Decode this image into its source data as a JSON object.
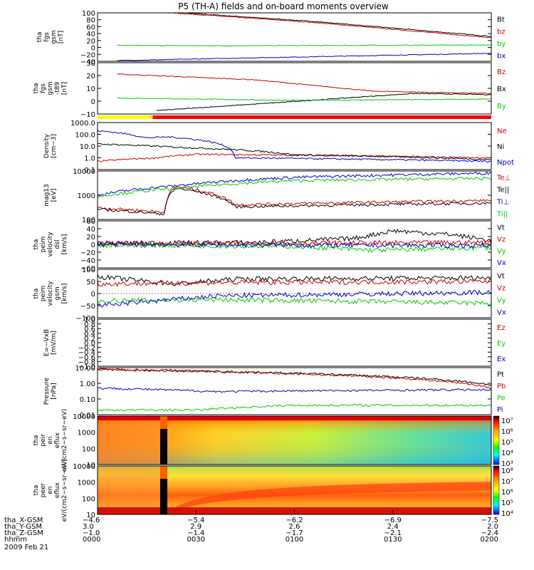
{
  "title": "P5 (TH-A) fields and on-board moments overview",
  "colors": {
    "black": "#000000",
    "red": "#cc0000",
    "green": "#00cc00",
    "blue": "#0000cc",
    "yellow": "#ffff00",
    "barred": "#ff0000"
  },
  "chart_data": [
    {
      "type": "line",
      "ylabel": "tha fgs gsm [nT]",
      "ylim": [
        -40,
        100
      ],
      "yticks": [
        "100",
        "80",
        "60",
        "40",
        "20",
        "0",
        "−20",
        "−40"
      ],
      "series": [
        {
          "name": "Bt",
          "color": "black",
          "x": [
            0.15,
            0.55,
            1.0
          ],
          "y": [
            105,
            75,
            32
          ]
        },
        {
          "name": "bz",
          "color": "red",
          "x": [
            0.15,
            0.55,
            1.0
          ],
          "y": [
            103,
            72,
            28
          ]
        },
        {
          "name": "by",
          "color": "green",
          "x": [
            0.05,
            0.3,
            1.0
          ],
          "y": [
            6,
            5,
            7
          ]
        },
        {
          "name": "bx",
          "color": "blue",
          "x": [
            0.05,
            0.4,
            1.0
          ],
          "y": [
            -38,
            -30,
            -17
          ]
        }
      ]
    },
    {
      "type": "line",
      "ylabel": "tha fgs gsm -t89 [nT]",
      "ylim": [
        -15,
        30
      ],
      "yticks": [
        "30",
        "20",
        "10",
        "0",
        "−10"
      ],
      "series": [
        {
          "name": "Bz",
          "color": "red",
          "x": [
            0.05,
            0.4,
            0.7,
            1.0
          ],
          "y": [
            20,
            15,
            5,
            3
          ]
        },
        {
          "name": "Bx",
          "color": "black",
          "x": [
            0.15,
            0.5,
            0.8,
            1.0
          ],
          "y": [
            -12,
            -4,
            3,
            2
          ]
        },
        {
          "name": "By",
          "color": "green",
          "x": [
            0.05,
            0.5,
            1.0
          ],
          "y": [
            -1,
            -3,
            -2
          ]
        }
      ]
    },
    {
      "type": "line",
      "ylabel": "Density [cm−3]",
      "ylim": [
        0.1,
        1000
      ],
      "log": true,
      "yticks": [
        "1000.0",
        "100.0",
        "10.0",
        "1.0",
        "0.1"
      ],
      "series": [
        {
          "name": "Ne",
          "color": "red",
          "x": [
            0,
            0.15,
            0.25,
            1.0
          ],
          "y": [
            0.5,
            1.0,
            2.0,
            1.0
          ]
        },
        {
          "name": "Ni",
          "color": "black",
          "x": [
            0,
            0.2,
            0.5,
            1.0
          ],
          "y": [
            15,
            8,
            1.8,
            0.7
          ]
        },
        {
          "name": "Npot",
          "color": "blue",
          "x": [
            0,
            0.12,
            0.18,
            0.35,
            1.0
          ],
          "y": [
            200,
            50,
            60,
            1.0,
            0.5
          ]
        }
      ]
    },
    {
      "type": "line",
      "ylabel": "mag13 [eV]",
      "ylim": [
        50,
        10000
      ],
      "log": true,
      "yticks": [
        "10000",
        "1000",
        "100"
      ],
      "series": [
        {
          "name": "Te⊥",
          "color": "red",
          "x": [
            0,
            0.17,
            0.2,
            0.35,
            1.0
          ],
          "y": [
            180,
            110,
            1800,
            250,
            400
          ]
        },
        {
          "name": "Te||",
          "color": "black",
          "x": [
            0,
            0.17,
            0.2,
            0.35,
            1.0
          ],
          "y": [
            150,
            90,
            1500,
            200,
            300
          ]
        },
        {
          "name": "Ti⊥",
          "color": "blue",
          "x": [
            0,
            0.2,
            0.5,
            1.0
          ],
          "y": [
            700,
            2000,
            5000,
            8000
          ]
        },
        {
          "name": "Ti||",
          "color": "green",
          "x": [
            0,
            0.2,
            0.5,
            1.0
          ],
          "y": [
            600,
            1500,
            3500,
            4500
          ]
        }
      ]
    },
    {
      "type": "line",
      "ylabel": "tha peim velocity dsl [km/s]",
      "ylim": [
        -60,
        60
      ],
      "yticks": [
        "60",
        "40",
        "20",
        "0",
        "−20",
        "−40",
        "−60"
      ],
      "series": [
        {
          "name": "Vt",
          "color": "black",
          "x": [
            0,
            0.4,
            0.65,
            0.75,
            0.9,
            1.0
          ],
          "y": [
            3,
            5,
            15,
            35,
            25,
            10
          ]
        },
        {
          "name": "Vz",
          "color": "red",
          "x": [
            0,
            0.5,
            1.0
          ],
          "y": [
            2,
            3,
            5
          ]
        },
        {
          "name": "Vy",
          "color": "green",
          "x": [
            0,
            0.5,
            0.7,
            1.0
          ],
          "y": [
            -2,
            -5,
            -15,
            -8
          ]
        },
        {
          "name": "Vx",
          "color": "blue",
          "x": [
            0,
            0.5,
            1.0
          ],
          "y": [
            0,
            -2,
            -3
          ]
        }
      ]
    },
    {
      "type": "line",
      "ylabel": "tha peim velocity gsm [km/s]",
      "ylim": [
        -100,
        100
      ],
      "yticks": [
        "100",
        "50",
        "0",
        "−50",
        "−100"
      ],
      "series": [
        {
          "name": "Vt",
          "color": "black",
          "x": [
            0,
            0.2,
            0.35,
            1.0
          ],
          "y": [
            70,
            40,
            60,
            65
          ]
        },
        {
          "name": "Vz",
          "color": "red",
          "x": [
            0,
            0.3,
            1.0
          ],
          "y": [
            40,
            45,
            50
          ]
        },
        {
          "name": "Vy",
          "color": "green",
          "x": [
            0,
            0.3,
            1.0
          ],
          "y": [
            -30,
            -25,
            -40
          ]
        },
        {
          "name": "Vx",
          "color": "blue",
          "x": [
            0,
            0.3,
            1.0
          ],
          "y": [
            -50,
            -10,
            5
          ]
        }
      ]
    },
    {
      "type": "line",
      "ylabel": "E=−VxB [mV/m]",
      "ylim": [
        -1,
        1
      ],
      "yticks": [
        "1.0",
        "0.8",
        "0.6",
        "0.4",
        "0.2",
        "0.0",
        "−0.2",
        "−0.4",
        "−0.6",
        "−0.8",
        "−1.0"
      ],
      "series": [
        {
          "name": "Ez",
          "color": "red",
          "x": [],
          "y": []
        },
        {
          "name": "Ey",
          "color": "green",
          "x": [],
          "y": []
        },
        {
          "name": "Ex",
          "color": "blue",
          "x": [],
          "y": []
        }
      ]
    },
    {
      "type": "line",
      "ylabel": "Pressure [nPa]",
      "ylim": [
        0.01,
        10
      ],
      "log": true,
      "yticks": [
        "10.00",
        "1.00",
        "0.10",
        "0.01"
      ],
      "series": [
        {
          "name": "Pt",
          "color": "black",
          "x": [
            0,
            1.0
          ],
          "y": [
            8,
            0.8
          ]
        },
        {
          "name": "Pb",
          "color": "red",
          "x": [
            0,
            1.0
          ],
          "y": [
            7.5,
            0.5
          ]
        },
        {
          "name": "Pe",
          "color": "green",
          "x": [
            0,
            0.25,
            0.5,
            1.0
          ],
          "y": [
            0.02,
            0.02,
            0.04,
            0.04
          ]
        },
        {
          "name": "Pi",
          "color": "blue",
          "x": [
            0,
            0.3,
            1.0
          ],
          "y": [
            0.5,
            0.3,
            0.4
          ]
        }
      ]
    },
    {
      "type": "heatmap",
      "ylabel": "tha peir en eflux eV/(cm2−s−sr−eV)",
      "ylim": [
        10,
        10000
      ],
      "log": true,
      "yticks": [
        "10000",
        "1000",
        "100",
        "10"
      ],
      "colorbar_ticks": [
        "10⁷",
        "10⁶",
        "10⁵",
        "10⁴",
        "10³"
      ]
    },
    {
      "type": "heatmap",
      "ylabel": "tha peer en eflux eV/(cm2−s−sr−eV)",
      "ylim": [
        10,
        10000
      ],
      "log": true,
      "yticks": [
        "10000",
        "1000",
        "100",
        "10"
      ],
      "colorbar_ticks": [
        "10⁸",
        "10⁷",
        "10⁶",
        "10⁵",
        "10⁴"
      ]
    }
  ],
  "status_bar": [
    {
      "from": 0,
      "to": 0.14,
      "color": "yellow"
    },
    {
      "from": 0.14,
      "to": 1.0,
      "color": "barred"
    }
  ],
  "x_axis": {
    "row_labels": [
      "tha_X-GSM",
      "tha_Y-GSM",
      "tha_Z-GSM",
      "hhmm",
      "2009 Feb 21"
    ],
    "ticks": [
      {
        "x": 0,
        "vals": [
          "−4.6",
          "3.0",
          "−1.0",
          "0000"
        ]
      },
      {
        "x": 0.25,
        "vals": [
          "−5.4",
          "2.9",
          "−1.4",
          "0030"
        ]
      },
      {
        "x": 0.5,
        "vals": [
          "−6.2",
          "2.6",
          "−1.7",
          "0100"
        ]
      },
      {
        "x": 0.75,
        "vals": [
          "−6.9",
          "2.4",
          "−2.1",
          "0130"
        ]
      },
      {
        "x": 1.0,
        "vals": [
          "−7.5",
          "2.0",
          "−2.4",
          "0200"
        ]
      }
    ]
  }
}
